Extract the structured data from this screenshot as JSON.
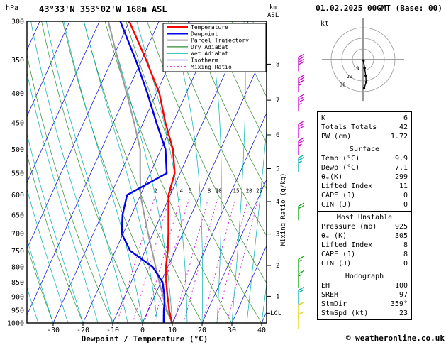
{
  "header": {
    "title": "43°33'N 353°02'W 168m ASL",
    "datetime": "01.02.2025 00GMT (Base: 00)"
  },
  "axes": {
    "pressure_unit": "hPa",
    "altitude_unit_line1": "km",
    "altitude_unit_line2": "ASL",
    "xlabel": "Dewpoint / Temperature (°C)",
    "mixing_ratio_label": "Mixing Ratio (g/kg)",
    "lcl_label": "LCL",
    "hodograph_unit": "kt"
  },
  "legend": {
    "items": [
      {
        "label": "Temperature",
        "key": "temperature"
      },
      {
        "label": "Dewpoint",
        "key": "dewpoint"
      },
      {
        "label": "Parcel Trajectory",
        "key": "parcel"
      },
      {
        "label": "Dry Adiabat",
        "key": "dry_adiabat"
      },
      {
        "label": "Wet Adiabat",
        "key": "wet_adiabat"
      },
      {
        "label": "Isotherm",
        "key": "isotherm"
      },
      {
        "label": "Mixing Ratio",
        "key": "mixing_ratio"
      }
    ]
  },
  "params_panel": {
    "groups": [
      {
        "title": "",
        "rows": [
          [
            "K",
            "6"
          ],
          [
            "Totals Totals",
            "42"
          ],
          [
            "PW (cm)",
            "1.72"
          ]
        ]
      },
      {
        "title": "Surface",
        "rows": [
          [
            "Temp (°C)",
            "9.9"
          ],
          [
            "Dewp (°C)",
            "7.1"
          ],
          [
            "θₑ(K)",
            "299"
          ],
          [
            "Lifted Index",
            "11"
          ],
          [
            "CAPE (J)",
            "0"
          ],
          [
            "CIN (J)",
            "0"
          ]
        ]
      },
      {
        "title": "Most Unstable",
        "rows": [
          [
            "Pressure (mb)",
            "925"
          ],
          [
            "θₑ (K)",
            "305"
          ],
          [
            "Lifted Index",
            "8"
          ],
          [
            "CAPE (J)",
            "8"
          ],
          [
            "CIN (J)",
            "0"
          ]
        ]
      },
      {
        "title": "Hodograph",
        "rows": [
          [
            "EH",
            "100"
          ],
          [
            "SREH",
            "97"
          ],
          [
            "StmDir",
            "359°"
          ],
          [
            "StmSpd (kt)",
            "23"
          ]
        ]
      }
    ]
  },
  "footer": {
    "credit": "© weatheronline.co.uk"
  },
  "chart_data": {
    "type": "line",
    "title": "Skew-T log-P sounding 43°33'N 353°02'W 168m ASL 01.02.2025 00GMT",
    "x_axis": {
      "label": "Dewpoint / Temperature (°C)",
      "ticks": [
        -30,
        -20,
        -10,
        0,
        10,
        20,
        30,
        40
      ]
    },
    "y_axis": {
      "label": "hPa",
      "scale": "log",
      "ticks": [
        300,
        350,
        400,
        450,
        500,
        550,
        600,
        650,
        700,
        750,
        800,
        850,
        900,
        950,
        1000
      ],
      "range": [
        300,
        1000
      ]
    },
    "km_asl_ticks": [
      {
        "km": 8,
        "hPa": 356
      },
      {
        "km": 7,
        "hPa": 411
      },
      {
        "km": 6,
        "hPa": 472
      },
      {
        "km": 5,
        "hPa": 540
      },
      {
        "km": 4,
        "hPa": 616
      },
      {
        "km": 3,
        "hPa": 701
      },
      {
        "km": 2,
        "hPa": 795
      },
      {
        "km": 1,
        "hPa": 899
      }
    ],
    "lcl_hPa": 962,
    "isotherms_c": {
      "start": -90,
      "end": 40,
      "step": 10
    },
    "dry_adiabats_c": {
      "start": -40,
      "end": 120,
      "step": 10
    },
    "wet_adiabats_c": {
      "start": -35,
      "end": 40,
      "step": 5
    },
    "mixing_ratio_lines_gkg": [
      2,
      3,
      4,
      5,
      8,
      10,
      15,
      20,
      25
    ],
    "sounding": {
      "pressure_hPa": [
        1000,
        950,
        925,
        900,
        850,
        800,
        750,
        700,
        650,
        600,
        550,
        500,
        450,
        400,
        350,
        300
      ],
      "temperature_c": [
        9.9,
        7.0,
        5.8,
        4.4,
        1.8,
        -0.6,
        -2.4,
        -4.8,
        -7.6,
        -10.6,
        -11.8,
        -16.0,
        -22.5,
        -29.0,
        -38.5,
        -50.0
      ],
      "dewpoint_c": [
        7.1,
        5.2,
        4.4,
        3.4,
        0.6,
        -5.0,
        -15.0,
        -20.5,
        -23.0,
        -24.5,
        -14.5,
        -18.5,
        -25.5,
        -33.0,
        -42.0,
        -53.0
      ],
      "parcel_c": [
        9.9,
        6.3,
        4.6,
        2.9,
        -0.5,
        -4.0,
        -7.7,
        -11.6,
        -15.7,
        -20.0,
        -23.4,
        -27.0,
        -33.0,
        -40.0,
        -48.0,
        -57.0
      ]
    },
    "wind_barbs": [
      {
        "p_hPa": 356,
        "speed_kt": 40,
        "color": "#cc00cc"
      },
      {
        "p_hPa": 387,
        "speed_kt": 35,
        "color": "#cc00cc"
      },
      {
        "p_hPa": 418,
        "speed_kt": 35,
        "color": "#cc00cc"
      },
      {
        "p_hPa": 465,
        "speed_kt": 30,
        "color": "#cc00cc"
      },
      {
        "p_hPa": 497,
        "speed_kt": 25,
        "color": "#cc00cc"
      },
      {
        "p_hPa": 532,
        "speed_kt": 25,
        "color": "#00b0b0"
      },
      {
        "p_hPa": 645,
        "speed_kt": 20,
        "color": "#00a000"
      },
      {
        "p_hPa": 797,
        "speed_kt": 15,
        "color": "#00a000"
      },
      {
        "p_hPa": 845,
        "speed_kt": 15,
        "color": "#00a000"
      },
      {
        "p_hPa": 902,
        "speed_kt": 20,
        "color": "#00b0b0"
      },
      {
        "p_hPa": 957,
        "speed_kt": 10,
        "color": "#ddcc00"
      },
      {
        "p_hPa": 995,
        "speed_kt": 10,
        "color": "#ddcc00"
      }
    ],
    "hodograph": {
      "rings_kt": [
        10,
        20,
        30
      ],
      "trace_kt_uv": [
        [
          0.5,
          -1
        ],
        [
          1.5,
          -8
        ],
        [
          2.5,
          -15
        ],
        [
          3,
          -21
        ],
        [
          1,
          -27
        ]
      ]
    },
    "colors": {
      "temperature": "#ff0000",
      "dewpoint": "#0000ee",
      "parcel": "#9a9a9a",
      "dry_adiabat": "#2e8b2e",
      "wet_adiabat": "#00b0b0",
      "isotherm": "#0000cd",
      "mixing_ratio": "#c800c8",
      "frame": "#000000",
      "hodograph_ring": "#999999"
    }
  }
}
